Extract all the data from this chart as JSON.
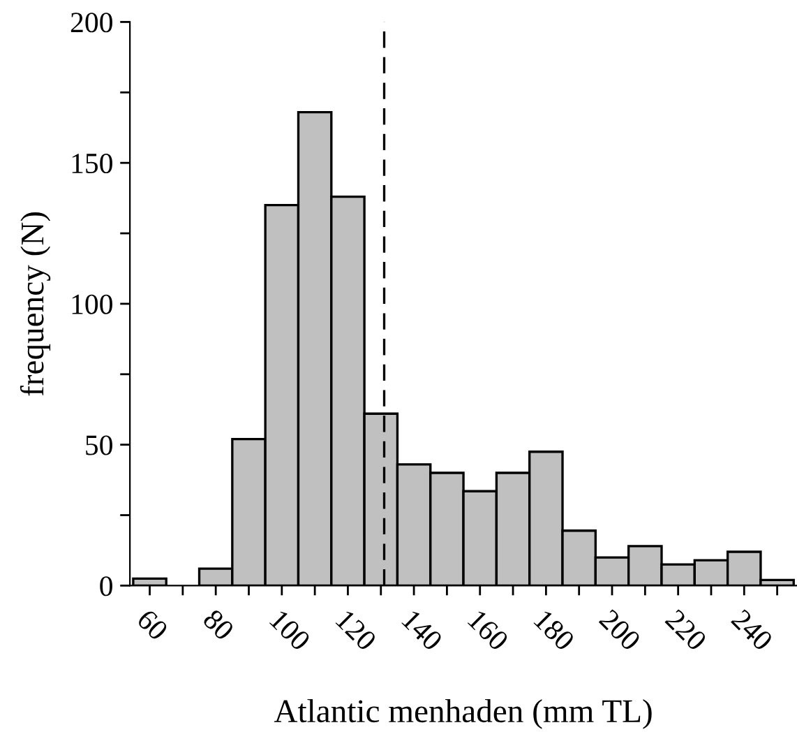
{
  "chart_data": {
    "type": "histogram",
    "xlabel": "Atlantic menhaden (mm TL)",
    "ylabel": "frequency (N)",
    "bins": [
      55,
      65,
      75,
      85,
      95,
      105,
      115,
      125,
      135,
      145,
      155,
      165,
      175,
      185,
      195,
      205,
      215,
      225,
      235,
      245,
      255
    ],
    "values": [
      2.5,
      0,
      6,
      52,
      135,
      168,
      138,
      61,
      43,
      40,
      33.5,
      40,
      47.5,
      19.5,
      10,
      14,
      7.5,
      9,
      12,
      2
    ],
    "color": "#c0c0c0",
    "xlim": [
      54,
      256
    ],
    "ylim": [
      0,
      200
    ],
    "xticks": [
      60,
      {
        "value": 70,
        "label": null
      },
      80,
      {
        "value": 90,
        "label": null
      },
      100,
      {
        "value": 110,
        "label": null
      },
      120,
      {
        "value": 130,
        "label": null
      },
      140,
      {
        "value": 150,
        "label": null
      },
      160,
      {
        "value": 170,
        "label": null
      },
      180,
      {
        "value": 190,
        "label": null
      },
      200,
      {
        "value": 210,
        "label": null
      },
      220,
      {
        "value": 230,
        "label": null
      },
      240,
      {
        "value": 250,
        "label": null
      }
    ],
    "yticks": [
      0,
      {
        "value": 25,
        "label": null
      },
      50,
      {
        "value": 75,
        "label": null
      },
      100,
      {
        "value": 125,
        "label": null
      },
      150,
      {
        "value": 175,
        "label": null
      },
      200
    ],
    "ref_lines": [
      {
        "axis": "x",
        "value": 131,
        "color": "#000000",
        "line_style": "dashed"
      }
    ],
    "grid": false,
    "legend": false
  }
}
